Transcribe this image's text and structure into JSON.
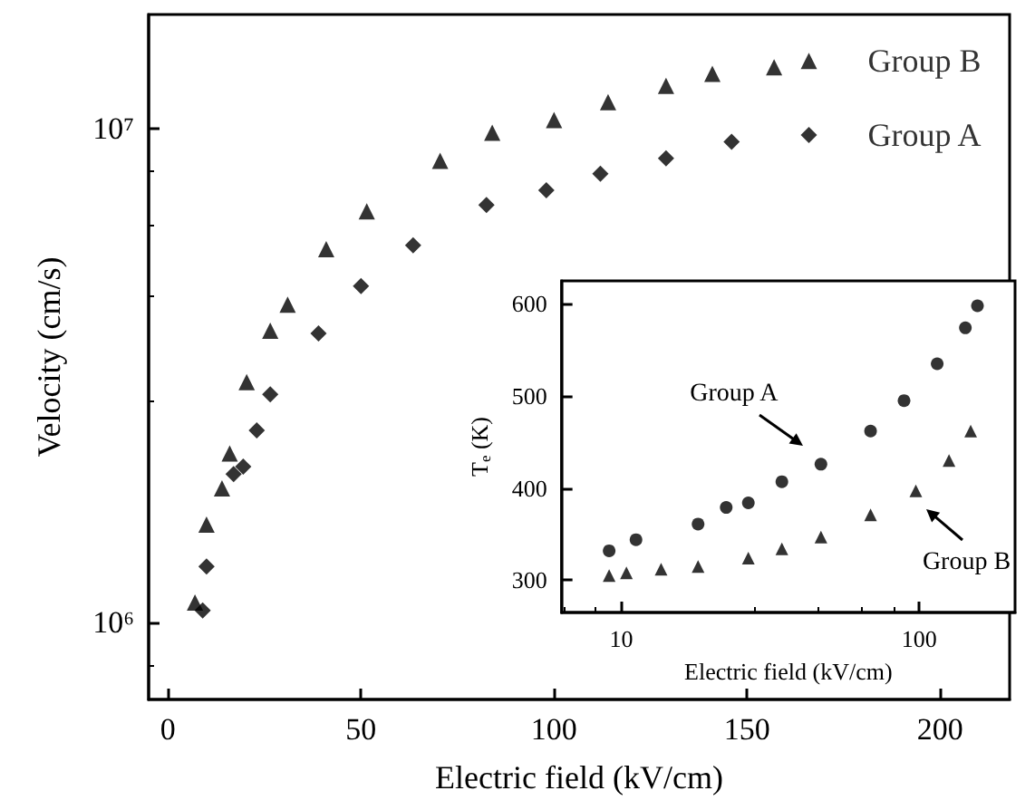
{
  "chart_data": [
    {
      "type": "scatter",
      "xlabel": "Electric field (kV/cm)",
      "ylabel": "Velocity (cm/s)",
      "log": "y",
      "xlim": [
        -5,
        218
      ],
      "xticks": [
        0,
        50,
        100,
        150,
        200
      ],
      "ylim": [
        700000,
        17000000
      ],
      "yticks": [
        {
          "value": 1000000,
          "label": "10⁶"
        },
        {
          "value": 10000000,
          "label": "10⁷"
        }
      ],
      "grid": false,
      "series": [
        {
          "name": "Group B",
          "color": "#000000",
          "marker": "triangle",
          "x": [
            7,
            10,
            14,
            16,
            20.4,
            26.5,
            31,
            41,
            51.5,
            70.5,
            84,
            100,
            114,
            129,
            141,
            157,
            166
          ],
          "values": [
            1100000,
            1580000,
            1870000,
            2200000,
            3070000,
            3900000,
            4400000,
            5700000,
            6800000,
            8600000,
            9800000,
            10400000,
            11300000,
            12200000,
            12900000,
            13300000,
            13700000
          ]
        },
        {
          "name": "Group A",
          "color": "#000000",
          "marker": "diamond",
          "x": [
            9,
            10,
            17,
            19.5,
            23,
            26.5,
            39,
            50,
            63.5,
            82.5,
            98,
            112,
            129,
            146,
            166
          ],
          "values": [
            1060000,
            1300000,
            2000000,
            2070000,
            2450000,
            2900000,
            3850000,
            4800000,
            5800000,
            7000000,
            7500000,
            8100000,
            8700000,
            9400000,
            9700000
          ]
        }
      ]
    },
    {
      "type": "scatter",
      "xlabel": "Electric field (kV/cm)",
      "ylabel": "T$_{e}$ (K)",
      "log": "x",
      "xlim": [
        6.3,
        210
      ],
      "xticks": [
        10,
        100
      ],
      "ylim": [
        265,
        625
      ],
      "yticks": [
        300,
        400,
        500,
        600
      ],
      "grid": false,
      "series": [
        {
          "name": "Group A",
          "color": "#000000",
          "marker": "circle",
          "x": [
            9.1,
            11.2,
            18.1,
            22.5,
            26.7,
            34.6,
            46.8,
            68.7,
            89,
            115,
            143,
            157
          ],
          "values": [
            332,
            344,
            361,
            379,
            384,
            407,
            426,
            462,
            495,
            535,
            574,
            598
          ]
        },
        {
          "name": "Group B",
          "color": "#000000",
          "marker": "triangle",
          "x": [
            9.1,
            10.4,
            13.6,
            18.1,
            26.7,
            34.6,
            46.8,
            68.7,
            97.5,
            126,
            149
          ],
          "values": [
            305,
            308,
            312,
            315,
            324,
            334,
            347,
            371,
            397,
            430,
            462
          ]
        }
      ]
    }
  ]
}
